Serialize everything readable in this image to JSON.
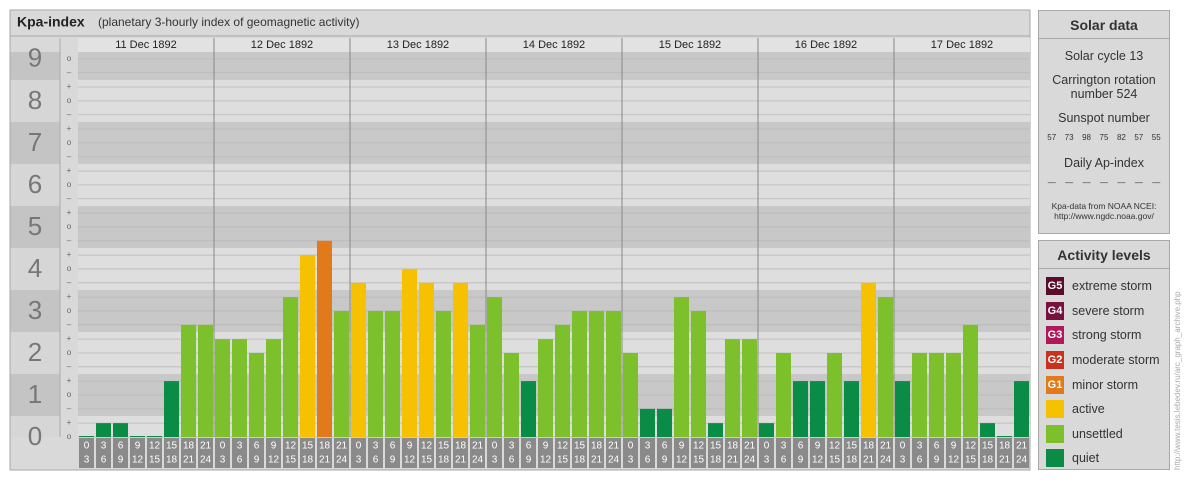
{
  "chart_data": {
    "type": "bar",
    "title": "Kpa-index",
    "subtitle": "(planetary 3-hourly index of geomagnetic activity)",
    "days": [
      "11 Dec 1892",
      "12 Dec 1892",
      "13 Dec 1892",
      "14 Dec 1892",
      "15 Dec 1892",
      "16 Dec 1892",
      "17 Dec 1892"
    ],
    "bin_labels": [
      [
        "0",
        "3"
      ],
      [
        "3",
        "6"
      ],
      [
        "6",
        "9"
      ],
      [
        "9",
        "12"
      ],
      [
        "12",
        "15"
      ],
      [
        "15",
        "18"
      ],
      [
        "18",
        "21"
      ],
      [
        "21",
        "24"
      ]
    ],
    "values": [
      0,
      0.33,
      0.33,
      0,
      0,
      1.33,
      2.67,
      2.67,
      2.33,
      2.33,
      2,
      2.33,
      3.33,
      4.33,
      4.67,
      3,
      3.67,
      3,
      3,
      4,
      3.67,
      3,
      3.67,
      2.67,
      3.33,
      2,
      1.33,
      2.33,
      2.67,
      3,
      3,
      3,
      2,
      0.67,
      0.67,
      3.33,
      3,
      0.33,
      2.33,
      2.33,
      0.33,
      2,
      1.33,
      1.33,
      2,
      1.33,
      3.67,
      3.33,
      1.33,
      2,
      2,
      2,
      2.67,
      0.33,
      0,
      1.33
    ],
    "colors": [
      "#0a8c46",
      "#0a8c46",
      "#0a8c46",
      "#0a8c46",
      "#0a8c46",
      "#0a8c46",
      "#7cc12b",
      "#7cc12b",
      "#7cc12b",
      "#7cc12b",
      "#7cc12b",
      "#7cc12b",
      "#7cc12b",
      "#f6c100",
      "#e07a1b",
      "#7cc12b",
      "#f6c100",
      "#7cc12b",
      "#7cc12b",
      "#f6c100",
      "#f6c100",
      "#7cc12b",
      "#f6c100",
      "#7cc12b",
      "#7cc12b",
      "#7cc12b",
      "#0a8c46",
      "#7cc12b",
      "#7cc12b",
      "#7cc12b",
      "#7cc12b",
      "#7cc12b",
      "#7cc12b",
      "#0a8c46",
      "#0a8c46",
      "#7cc12b",
      "#7cc12b",
      "#0a8c46",
      "#7cc12b",
      "#7cc12b",
      "#0a8c46",
      "#7cc12b",
      "#0a8c46",
      "#0a8c46",
      "#7cc12b",
      "#0a8c46",
      "#f6c100",
      "#7cc12b",
      "#0a8c46",
      "#7cc12b",
      "#7cc12b",
      "#7cc12b",
      "#7cc12b",
      "#0a8c46",
      "#0a8c46",
      "#0a8c46"
    ],
    "ylim": [
      0,
      9.33
    ],
    "yticks": [
      0,
      1,
      2,
      3,
      4,
      5,
      6,
      7,
      8,
      9
    ],
    "yticks_minor": [
      {
        "value": 0,
        "label": "o"
      },
      {
        "value": 0.33,
        "label": "+"
      },
      {
        "value": 0.67,
        "label": "–"
      },
      {
        "value": 1,
        "label": "o"
      },
      {
        "value": 1.33,
        "label": "+"
      },
      {
        "value": 1.67,
        "label": "–"
      },
      {
        "value": 2,
        "label": "o"
      },
      {
        "value": 2.33,
        "label": "+"
      },
      {
        "value": 2.67,
        "label": "–"
      },
      {
        "value": 3,
        "label": "o"
      },
      {
        "value": 3.33,
        "label": "+"
      },
      {
        "value": 3.67,
        "label": "–"
      },
      {
        "value": 4,
        "label": "o"
      },
      {
        "value": 4.33,
        "label": "+"
      },
      {
        "value": 4.67,
        "label": "–"
      },
      {
        "value": 5,
        "label": "o"
      },
      {
        "value": 5.33,
        "label": "+"
      },
      {
        "value": 5.67,
        "label": "–"
      },
      {
        "value": 6,
        "label": "o"
      },
      {
        "value": 6.33,
        "label": "+"
      },
      {
        "value": 6.67,
        "label": "–"
      },
      {
        "value": 7,
        "label": "o"
      },
      {
        "value": 7.33,
        "label": "+"
      },
      {
        "value": 7.67,
        "label": "–"
      },
      {
        "value": 8,
        "label": "o"
      },
      {
        "value": 8.33,
        "label": "+"
      },
      {
        "value": 8.67,
        "label": "–"
      },
      {
        "value": 9,
        "label": "o"
      }
    ],
    "grid": true
  },
  "solar_data": {
    "title": "Solar data",
    "cycle": "Solar cycle 13",
    "carrington": "Carrington rotation number 524",
    "sunspot_title": "Sunspot number",
    "sunspot": [
      57,
      73,
      98,
      75,
      82,
      57,
      55
    ],
    "ap_title": "Daily Ap-index",
    "ap": [
      "—",
      "—",
      "—",
      "—",
      "—",
      "—",
      "—"
    ],
    "source": "Kpa-data from NOAA NCEI: http://www.ngdc.noaa.gov/"
  },
  "activity_levels": {
    "title": "Activity levels",
    "items": [
      {
        "badge": "G5",
        "label": "extreme storm",
        "color": "#5a0c2c"
      },
      {
        "badge": "G4",
        "label": "severe storm",
        "color": "#7a1040"
      },
      {
        "badge": "G3",
        "label": "strong storm",
        "color": "#b0185a"
      },
      {
        "badge": "G2",
        "label": "moderate storm",
        "color": "#c8321e"
      },
      {
        "badge": "G1",
        "label": "minor storm",
        "color": "#e07a1b"
      },
      {
        "label": "active",
        "color": "#f6c100"
      },
      {
        "label": "unsettled",
        "color": "#7cc12b"
      },
      {
        "label": "quiet",
        "color": "#0a8c46"
      }
    ]
  },
  "credit": "http://www.tesis.lebedev.ru/arc_graph_archive.php"
}
